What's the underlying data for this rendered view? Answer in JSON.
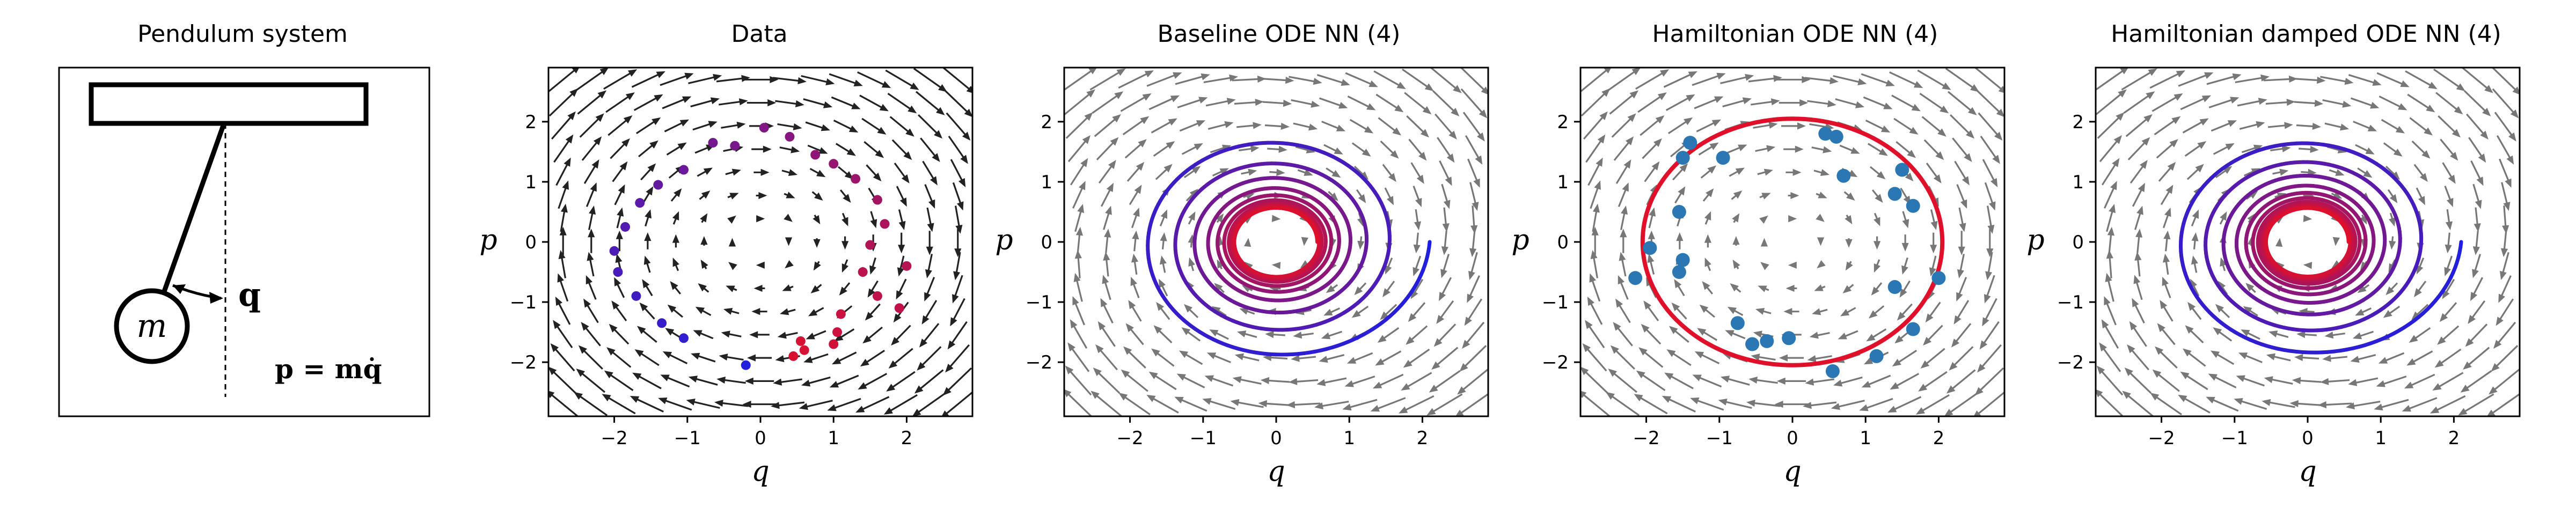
{
  "figure": {
    "panel_titles": [
      "Pendulum system",
      "Data",
      "Baseline ODE NN (4)",
      "Hamiltonian ODE NN (4)",
      "Hamiltonian damped ODE NN (4)"
    ]
  },
  "schematic": {
    "mass_label": "m",
    "q_label": "q",
    "momentum_label": "p = mq̇"
  },
  "colors": {
    "arrow_data": "#222222",
    "arrow_model": "#777777",
    "trajectory_start": "#1f1fe0",
    "trajectory_end": "#e0102a",
    "hamiltonian_points": "#2a77b4"
  },
  "chart_data": [
    {
      "type": "scatter",
      "title": "Data",
      "xlabel": "q",
      "ylabel": "p",
      "xlim": [
        -2.9,
        2.9
      ],
      "ylim": [
        -2.9,
        2.9
      ],
      "xticks": [
        -2,
        -1,
        0,
        1,
        2
      ],
      "yticks": [
        -2,
        -1,
        0,
        1,
        2
      ],
      "vector_field": "rotation (dq/dt = p, dp/dt = -q)",
      "points": [
        [
          1.6,
          0.7
        ],
        [
          1.7,
          0.3
        ],
        [
          1.5,
          -0.05
        ],
        [
          1.4,
          -0.5
        ],
        [
          1.6,
          -0.9
        ],
        [
          1.1,
          -1.2
        ],
        [
          1.05,
          -1.5
        ],
        [
          1.0,
          -1.7
        ],
        [
          0.55,
          -1.65
        ],
        [
          0.45,
          -1.9
        ],
        [
          1.3,
          1.05
        ],
        [
          1.0,
          1.3
        ],
        [
          0.75,
          1.45
        ],
        [
          0.4,
          1.75
        ],
        [
          0.05,
          1.9
        ],
        [
          -0.35,
          1.6
        ],
        [
          -0.65,
          1.65
        ],
        [
          -1.05,
          1.2
        ],
        [
          -1.4,
          0.95
        ],
        [
          -1.65,
          0.65
        ],
        [
          -1.85,
          0.25
        ],
        [
          -2.0,
          -0.15
        ],
        [
          -1.95,
          -0.5
        ],
        [
          -1.7,
          -0.9
        ],
        [
          -1.35,
          -1.35
        ],
        [
          -1.05,
          -1.6
        ],
        [
          -0.2,
          -2.05
        ],
        [
          0.6,
          -1.8
        ],
        [
          1.9,
          -1.1
        ],
        [
          2.0,
          -0.4
        ]
      ]
    },
    {
      "type": "line",
      "title": "Baseline ODE NN (4)",
      "xlabel": "q",
      "ylabel": "p",
      "xlim": [
        -2.9,
        2.9
      ],
      "ylim": [
        -2.9,
        2.9
      ],
      "xticks": [
        -2,
        -1,
        0,
        1,
        2
      ],
      "yticks": [
        -2,
        -1,
        0,
        1,
        2
      ],
      "vector_field": "damped rotation",
      "trajectory": {
        "start": [
          2.1,
          0.0
        ],
        "start_radius": 2.0,
        "end_radius": 0.5,
        "turns": 9
      }
    },
    {
      "type": "scatter",
      "title": "Hamiltonian ODE NN (4)",
      "xlabel": "q",
      "ylabel": "p",
      "xlim": [
        -2.9,
        2.9
      ],
      "ylim": [
        -2.9,
        2.9
      ],
      "xticks": [
        -2,
        -1,
        0,
        1,
        2
      ],
      "yticks": [
        -2,
        -1,
        0,
        1,
        2
      ],
      "vector_field": "rotation",
      "trajectory": {
        "shape": "closed orbit",
        "radius": 2.05
      },
      "points": [
        [
          -1.4,
          1.65
        ],
        [
          -1.5,
          1.4
        ],
        [
          -0.95,
          1.4
        ],
        [
          0.45,
          1.8
        ],
        [
          0.6,
          1.75
        ],
        [
          0.7,
          1.1
        ],
        [
          1.5,
          1.2
        ],
        [
          1.4,
          0.8
        ],
        [
          1.65,
          0.6
        ],
        [
          2.0,
          -0.6
        ],
        [
          1.4,
          -0.75
        ],
        [
          1.65,
          -1.45
        ],
        [
          1.15,
          -1.9
        ],
        [
          0.55,
          -2.15
        ],
        [
          -0.05,
          -1.6
        ],
        [
          -0.35,
          -1.65
        ],
        [
          -0.55,
          -1.7
        ],
        [
          -0.75,
          -1.35
        ],
        [
          -1.55,
          0.5
        ],
        [
          -1.5,
          -0.3
        ],
        [
          -1.55,
          -0.5
        ],
        [
          -1.95,
          -0.1
        ],
        [
          -2.15,
          -0.6
        ]
      ]
    },
    {
      "type": "line",
      "title": "Hamiltonian damped ODE NN (4)",
      "xlabel": "q",
      "ylabel": "p",
      "xlim": [
        -2.9,
        2.9
      ],
      "ylim": [
        -2.9,
        2.9
      ],
      "xticks": [
        -2,
        -1,
        0,
        1,
        2
      ],
      "yticks": [
        -2,
        -1,
        0,
        1,
        2
      ],
      "vector_field": "damped rotation",
      "trajectory": {
        "start": [
          2.1,
          0.0
        ],
        "start_radius": 1.95,
        "end_radius": 0.5,
        "turns": 10
      }
    }
  ]
}
